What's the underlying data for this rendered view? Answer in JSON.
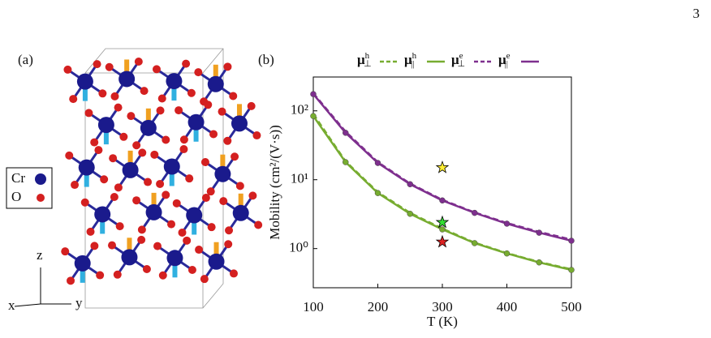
{
  "page_number": "3",
  "panel_a": {
    "label": "(a)",
    "legend": [
      {
        "name": "Cr",
        "color": "#1a1a8c"
      },
      {
        "name": "O",
        "color": "#d42020"
      }
    ],
    "axes": [
      "x",
      "y",
      "z"
    ]
  },
  "chart_data": {
    "type": "line",
    "panel_label": "(b)",
    "x_label": "T (K)",
    "y_label": "Mobility (cm²/(V·s))",
    "x": [
      100,
      150,
      200,
      250,
      300,
      350,
      400,
      450,
      500
    ],
    "xlim": [
      100,
      500
    ],
    "xticks": [
      100,
      200,
      300,
      400,
      500
    ],
    "ylim": [
      0.27,
      310
    ],
    "y_log": true,
    "yticks": [
      {
        "value": 1,
        "label": "10⁰"
      },
      {
        "value": 10,
        "label": "10¹"
      },
      {
        "value": 100,
        "label": "10²"
      }
    ],
    "series": [
      {
        "label": {
          "base": "μ",
          "sup": "h",
          "sub": "⊥"
        },
        "color": "#77ac30",
        "dashed": true,
        "values": [
          90,
          18.5,
          6.6,
          3.3,
          1.95,
          1.22,
          0.86,
          0.64,
          0.5
        ]
      },
      {
        "label": {
          "base": "μ",
          "sup": "h",
          "sub": "||"
        },
        "color": "#77ac30",
        "dashed": false,
        "values": [
          84,
          18,
          6.4,
          3.2,
          1.9,
          1.2,
          0.85,
          0.63,
          0.49
        ]
      },
      {
        "label": {
          "base": "μ",
          "sup": "e",
          "sub": "⊥"
        },
        "color": "#7e2f8e",
        "dashed": true,
        "values": [
          180,
          50,
          18,
          8.8,
          5.1,
          3.35,
          2.35,
          1.75,
          1.35
        ]
      },
      {
        "label": {
          "base": "μ",
          "sup": "e",
          "sub": "||"
        },
        "color": "#7e2f8e",
        "dashed": false,
        "values": [
          175,
          48,
          17.5,
          8.6,
          5.0,
          3.3,
          2.3,
          1.7,
          1.3
        ]
      }
    ],
    "markers": [
      {
        "x": 300,
        "y": 15,
        "color": "#ffee33"
      },
      {
        "x": 300,
        "y": 2.4,
        "color": "#33dd33"
      },
      {
        "x": 300,
        "y": 1.25,
        "color": "#dd2222"
      }
    ]
  }
}
